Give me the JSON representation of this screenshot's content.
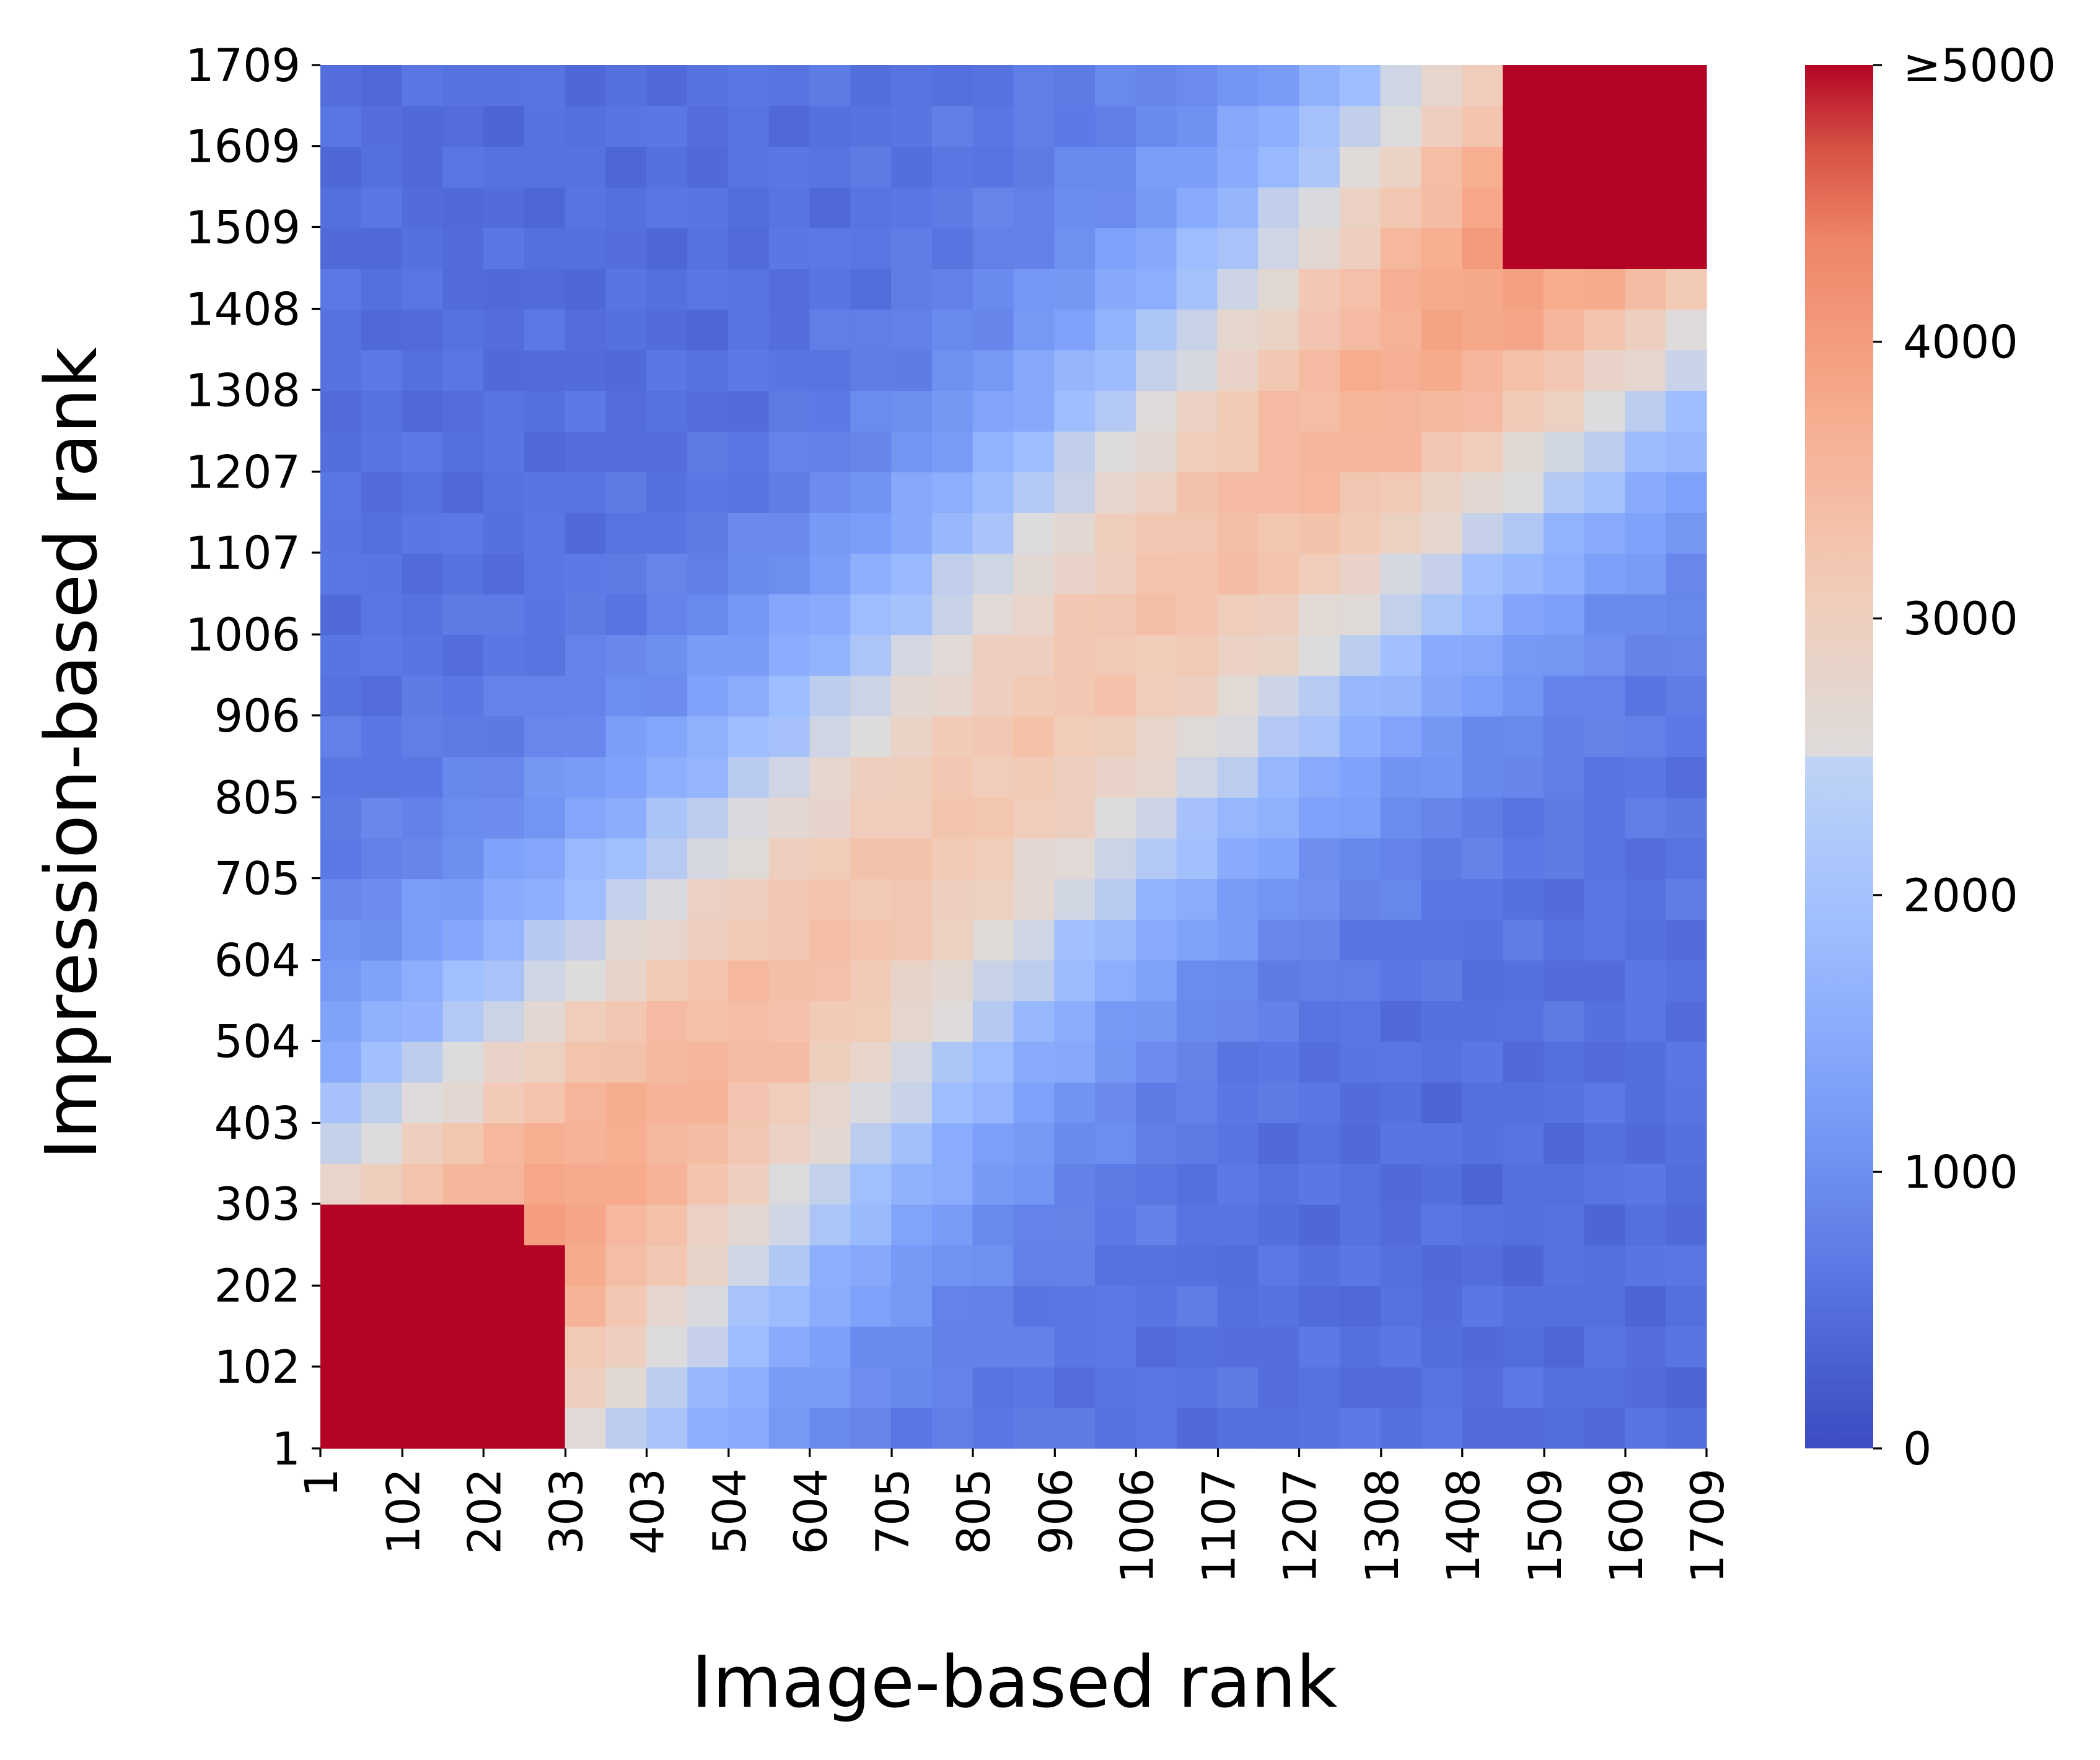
{
  "chart_data": {
    "type": "heatmap",
    "title": "",
    "xlabel": "Image-based rank",
    "ylabel": "Impression-based rank",
    "x_tick_labels": [
      "1",
      "102",
      "202",
      "303",
      "403",
      "504",
      "604",
      "705",
      "805",
      "906",
      "1006",
      "1107",
      "1207",
      "1308",
      "1408",
      "1509",
      "1609",
      "1709"
    ],
    "y_tick_labels": [
      "1",
      "102",
      "202",
      "303",
      "403",
      "504",
      "604",
      "705",
      "805",
      "906",
      "1006",
      "1107",
      "1207",
      "1308",
      "1408",
      "1509",
      "1609",
      "1709"
    ],
    "xlim": [
      1,
      1709
    ],
    "ylim": [
      1,
      1709
    ],
    "grid_cells": [
      34,
      34
    ],
    "colormap": "coolwarm",
    "value_range": [
      0,
      5000
    ],
    "colorbar": {
      "tick_labels": [
        "0",
        "1000",
        "2000",
        "3000",
        "4000",
        "≥5000"
      ],
      "tick_values": [
        0,
        1000,
        2000,
        3000,
        4000,
        5000
      ]
    },
    "colors": {
      "low": "#3b4cc0",
      "mid": "#dddcdc",
      "high": "#b40426"
    },
    "structure": {
      "diagonal_band_width_rank": 300,
      "low_rank_corner_cells": 6,
      "high_rank_corner_cells": 5,
      "corner_value": 5000,
      "off_diagonal_min": 500
    }
  }
}
